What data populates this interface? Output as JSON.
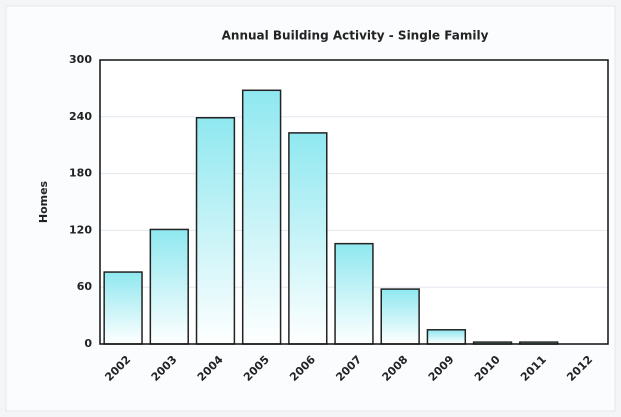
{
  "chart_data": {
    "type": "bar",
    "title": "Annual Building Activity - Single Family",
    "y_label": "Homes",
    "categories": [
      "2002",
      "2003",
      "2004",
      "2005",
      "2006",
      "2007",
      "2008",
      "2009",
      "2010",
      "2011",
      "2012"
    ],
    "values": [
      76,
      121,
      239,
      268,
      223,
      106,
      58,
      15,
      2,
      2,
      0
    ],
    "color": "#8fe8f0",
    "ylim": [
      0,
      300
    ],
    "yticks": [
      0,
      60,
      120,
      180,
      240,
      300
    ],
    "grid": true
  }
}
